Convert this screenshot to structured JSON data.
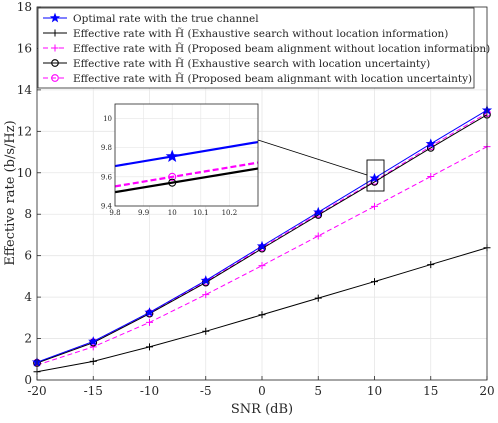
{
  "chart_data": {
    "type": "line",
    "xlabel": "SNR (dB)",
    "ylabel": "Effective rate (b/s/Hz)",
    "xlim": [
      -20,
      20
    ],
    "ylim": [
      0,
      18
    ],
    "x_ticks": [
      "-20",
      "-15",
      "-10",
      "-5",
      "0",
      "5",
      "10",
      "15",
      "20"
    ],
    "y_ticks": [
      "0",
      "2",
      "4",
      "6",
      "8",
      "10",
      "12",
      "14",
      "16",
      "18"
    ],
    "grid": true,
    "legend_position": "top-left",
    "x": [
      -20,
      -15,
      -10,
      -5,
      0,
      5,
      10,
      15,
      20
    ],
    "series": [
      {
        "name": "Optimal rate with the true channel",
        "values": [
          0.86,
          1.86,
          3.26,
          4.8,
          6.46,
          8.1,
          9.74,
          11.4,
          13.02
        ],
        "color": "#0000ff",
        "marker": "star",
        "dash": "solid"
      },
      {
        "name": "Effective rate with H̃ (Exhaustive search without location information)",
        "values": [
          0.4,
          0.9,
          1.6,
          2.35,
          3.15,
          3.95,
          4.75,
          5.57,
          6.38
        ],
        "color": "#000000",
        "marker": "plus",
        "dash": "solid"
      },
      {
        "name": "Effective rate with H̃ (Proposed beam alignment without location information)",
        "values": [
          0.72,
          1.6,
          2.78,
          4.12,
          5.52,
          6.95,
          8.38,
          9.82,
          11.26
        ],
        "color": "#ff00ff",
        "marker": "plus",
        "dash": "dashed"
      },
      {
        "name": "Effective rate with H̃ (Exhaustive search with location uncertainty)",
        "values": [
          0.82,
          1.8,
          3.2,
          4.7,
          6.34,
          7.96,
          9.56,
          11.2,
          12.8
        ],
        "color": "#000000",
        "marker": "circle",
        "dash": "solid"
      },
      {
        "name": "Effective rate with H̃ (Proposed beam alignmant with location uncertainty)",
        "values": [
          0.84,
          1.83,
          3.23,
          4.74,
          6.39,
          8.02,
          9.6,
          11.28,
          12.88
        ],
        "color": "#ff00ff",
        "marker": "circle",
        "dash": "dashed"
      }
    ],
    "inset": {
      "xlim": [
        9.8,
        10.3
      ],
      "ylim": [
        9.4,
        10.1
      ],
      "x_ticks": [
        "9.8",
        "9.9",
        "10",
        "10.1",
        "10.2"
      ],
      "y_ticks": [
        "9.4",
        "9.6",
        "9.8",
        "10"
      ]
    }
  }
}
